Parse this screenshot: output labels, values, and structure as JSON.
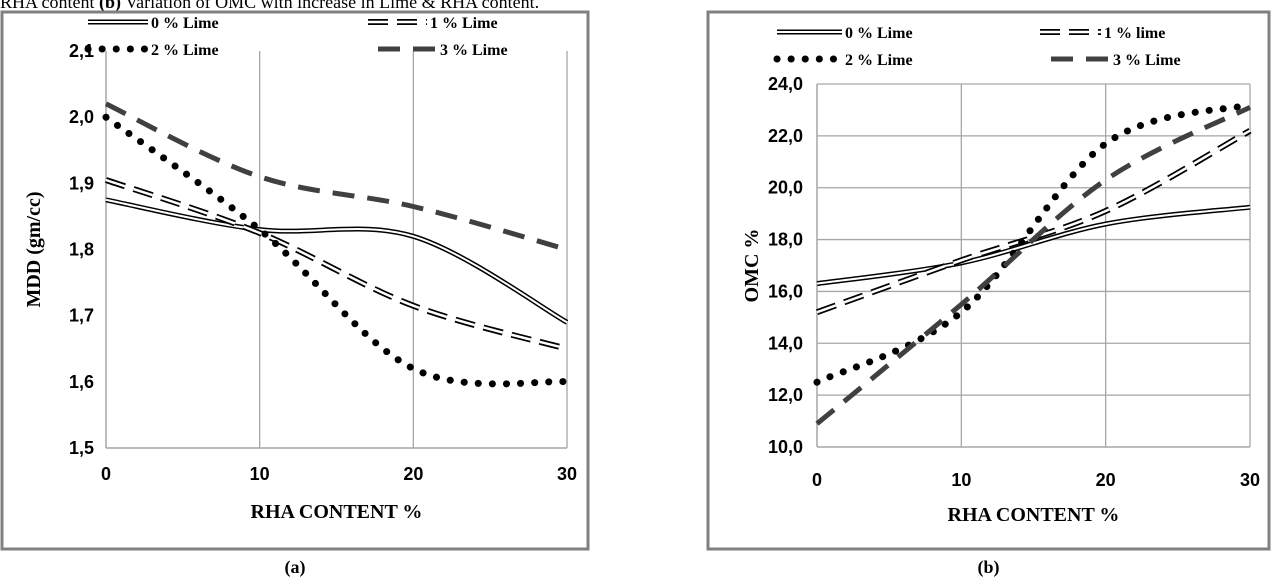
{
  "caption": {
    "prefix": "RHA content ",
    "b_label": "(b)",
    "suffix": " Variation of OMC with increase in Lime & RHA content."
  },
  "colors": {
    "frame": "#808080",
    "grid": "#a6a6a6",
    "series_black": "#000000",
    "series_gray": "#404040"
  },
  "chart_data": [
    {
      "type": "line",
      "panel_label": "(a)",
      "xlabel": "RHA CONTENT %",
      "ylabel": "MDD (gm/cc)",
      "xlim": [
        0,
        30
      ],
      "ylim": [
        1.5,
        2.1
      ],
      "xticks": [
        0,
        10,
        20,
        30
      ],
      "xtick_labels": [
        "0",
        "10",
        "20",
        "30"
      ],
      "yticks": [
        1.5,
        1.6,
        1.7,
        1.8,
        1.9,
        2.0,
        2.1
      ],
      "ytick_labels": [
        "1,5",
        "1,6",
        "1,7",
        "1,8",
        "1,9",
        "2,0",
        "2,1"
      ],
      "grid": "vertical",
      "legend_position": "top",
      "series": [
        {
          "name": "0 % Lime",
          "style": "double",
          "x": [
            0,
            10,
            20,
            30
          ],
          "values": [
            1.875,
            1.83,
            1.82,
            1.69
          ]
        },
        {
          "name": "1 % Lime",
          "style": "double-dash",
          "x": [
            0,
            10,
            20,
            30
          ],
          "values": [
            1.905,
            1.825,
            1.715,
            1.65
          ]
        },
        {
          "name": "2 % Lime",
          "style": "dotted",
          "x": [
            0,
            10,
            20,
            30
          ],
          "values": [
            2.0,
            1.83,
            1.62,
            1.6
          ]
        },
        {
          "name": "3 % Lime",
          "style": "dashed",
          "x": [
            0,
            10,
            20,
            30
          ],
          "values": [
            2.02,
            1.91,
            1.865,
            1.8
          ]
        }
      ]
    },
    {
      "type": "line",
      "panel_label": "(b)",
      "xlabel": "RHA CONTENT %",
      "ylabel": "OMC %",
      "xlim": [
        0,
        30
      ],
      "ylim": [
        10,
        24
      ],
      "xticks": [
        0,
        10,
        20,
        30
      ],
      "xtick_labels": [
        "0",
        "10",
        "20",
        "30"
      ],
      "yticks": [
        10,
        12,
        14,
        16,
        18,
        20,
        22,
        24
      ],
      "ytick_labels": [
        "10,0",
        "12,0",
        "14,0",
        "16,0",
        "18,0",
        "20,0",
        "22,0",
        "24,0"
      ],
      "grid": "both",
      "legend_position": "top",
      "series": [
        {
          "name": "0 % Lime",
          "style": "double",
          "x": [
            0,
            10,
            20,
            30
          ],
          "values": [
            16.3,
            17.1,
            18.6,
            19.25
          ]
        },
        {
          "name": "1 % lime",
          "style": "double-dash",
          "x": [
            0,
            10,
            20,
            30
          ],
          "values": [
            15.2,
            17.2,
            19.1,
            22.2
          ]
        },
        {
          "name": "2 % Lime",
          "style": "dotted",
          "x": [
            0,
            10,
            20,
            30
          ],
          "values": [
            12.5,
            15.2,
            21.7,
            23.2
          ]
        },
        {
          "name": "3 % Lime",
          "style": "dashed",
          "x": [
            0,
            10,
            20,
            30
          ],
          "values": [
            10.9,
            15.5,
            20.3,
            23.1
          ]
        }
      ]
    }
  ]
}
